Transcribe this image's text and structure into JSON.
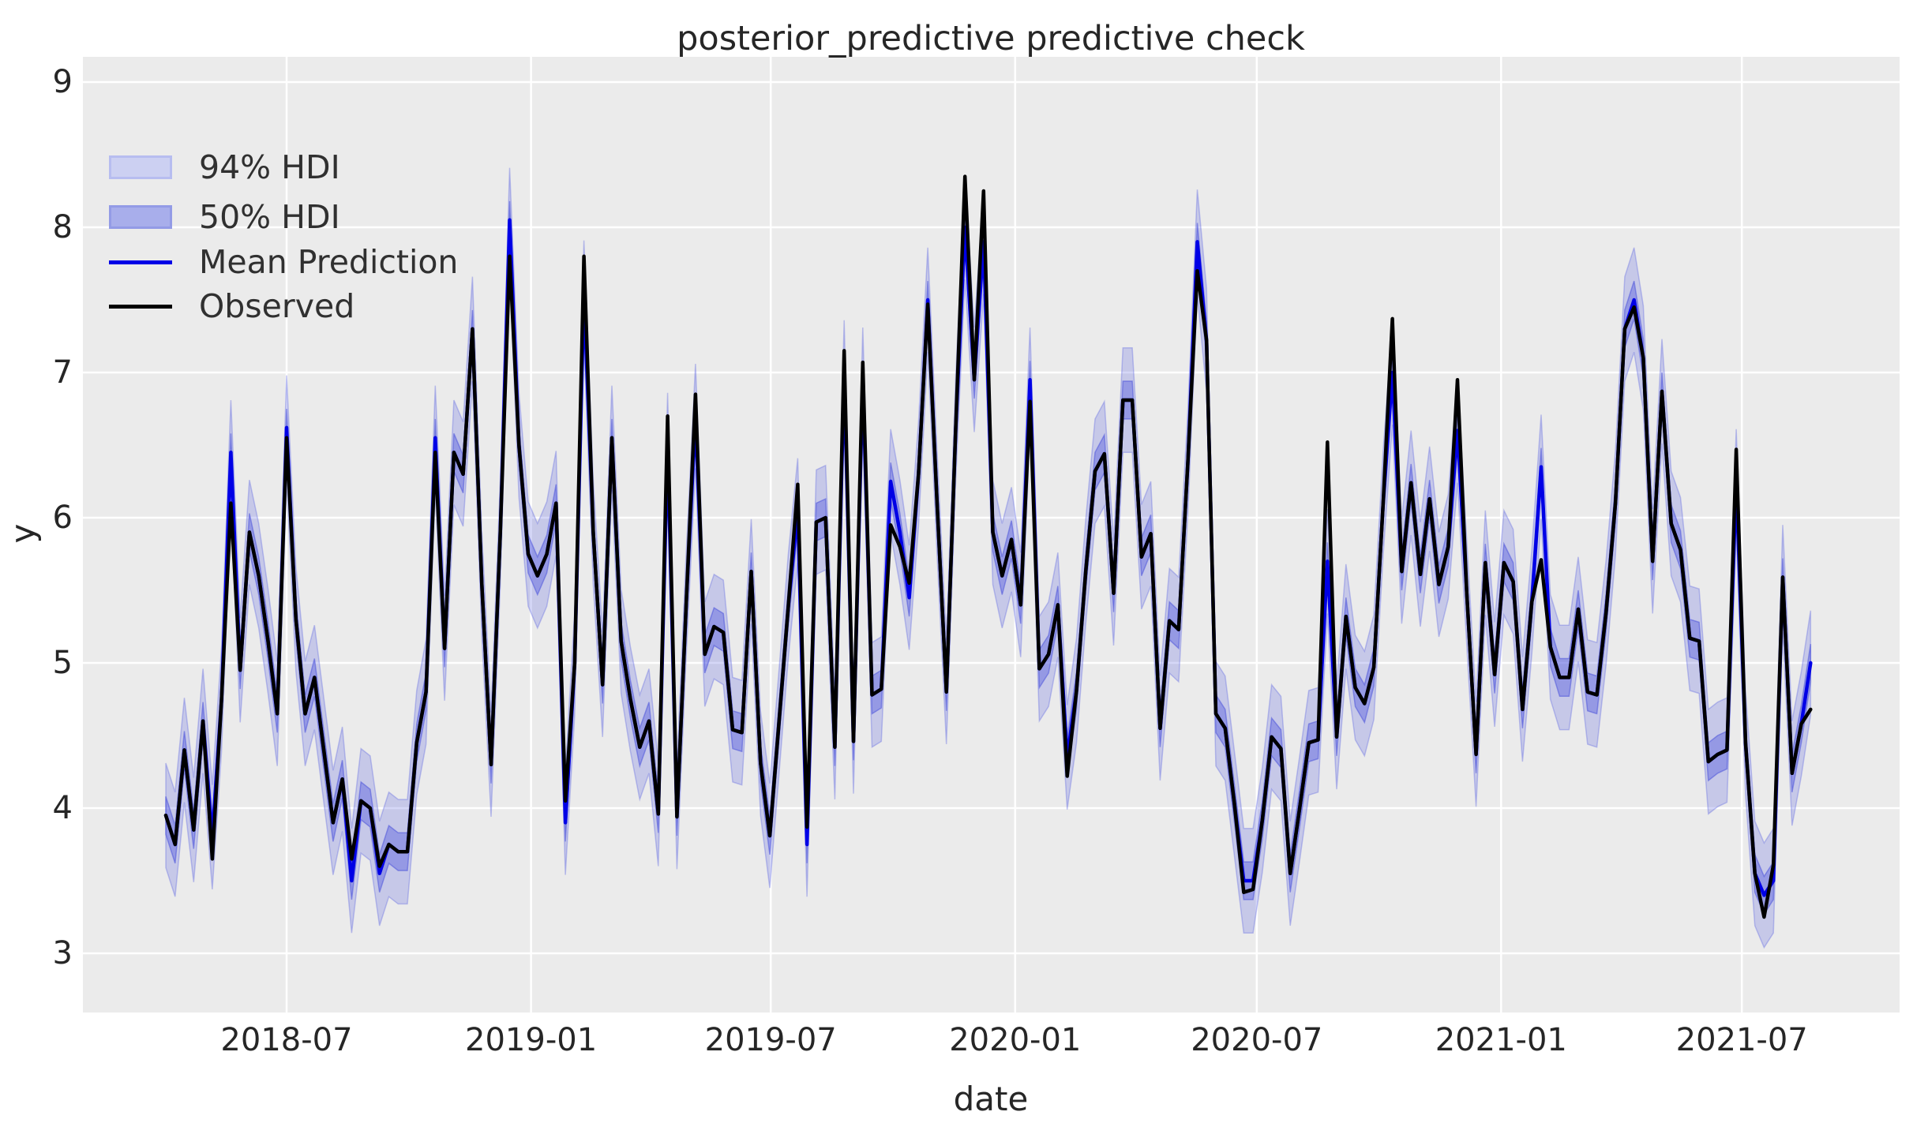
{
  "title": "posterior_predictive predictive check",
  "axes": {
    "xlabel": "date",
    "ylabel": "y"
  },
  "legend": {
    "hdi94_label": "94% HDI",
    "hdi50_label": "50% HDI",
    "mean_label": "Mean Prediction",
    "observed_label": "Observed"
  },
  "colors": {
    "figure_background": "#ffffff",
    "plot_background": "#ebebeb",
    "gridline": "#ffffff",
    "text": "#262626",
    "observed_line": "#000000",
    "mean_line": "#0000e6",
    "hdi94_fill": "rgba(88,96,225,0.25)",
    "hdi94_edge": "rgba(88,96,225,0.35)",
    "hdi50_fill": "rgba(88,96,225,0.45)",
    "hdi50_edge": "rgba(78,86,218,0.55)",
    "legend_hdi94_fill": "#ccd0f2",
    "legend_hdi94_edge": "#b7bdf0",
    "legend_hdi50_fill": "#a8aeeb",
    "legend_hdi50_edge": "#939be6"
  },
  "chart_data": {
    "type": "line",
    "title": "posterior_predictive predictive check",
    "xlabel": "date",
    "ylabel": "y",
    "x_unit": "weeks starting 2018-04-01",
    "xticks": [
      {
        "label": "2018-07",
        "week": 13.0
      },
      {
        "label": "2019-01",
        "week": 39.3
      },
      {
        "label": "2019-07",
        "week": 65.1
      },
      {
        "label": "2020-01",
        "week": 91.4
      },
      {
        "label": "2020-07",
        "week": 117.4
      },
      {
        "label": "2021-01",
        "week": 143.7
      },
      {
        "label": "2021-07",
        "week": 169.6
      }
    ],
    "yticks": [
      3,
      4,
      5,
      6,
      7,
      8,
      9
    ],
    "ylim": [
      2.7,
      9.17
    ],
    "xlim_weeks": [
      -8.9,
      186.6
    ],
    "grid": true,
    "legend_position": "upper left",
    "bands": [
      {
        "name": "94% HDI",
        "halfwidth": 0.36
      },
      {
        "name": "50% HDI",
        "halfwidth": 0.13
      }
    ],
    "series": [
      {
        "name": "Observed",
        "values": [
          3.95,
          3.75,
          4.4,
          3.85,
          4.6,
          3.65,
          4.75,
          6.1,
          4.95,
          5.9,
          5.6,
          5.15,
          4.65,
          6.55,
          5.3,
          4.65,
          4.9,
          4.4,
          3.9,
          4.2,
          3.65,
          4.05,
          4.0,
          3.6,
          3.75,
          3.7,
          3.7,
          4.45,
          4.8,
          6.45,
          5.1,
          6.45,
          6.3,
          7.3,
          5.55,
          4.3,
          5.9,
          7.8,
          6.5,
          5.75,
          5.6,
          5.75,
          6.1,
          4.05,
          5.0,
          7.8,
          5.9,
          4.85,
          6.55,
          5.15,
          4.75,
          4.42,
          4.6,
          3.96,
          6.7,
          3.94,
          5.4,
          6.85,
          5.06,
          5.25,
          5.21,
          4.54,
          4.52,
          5.63,
          4.31,
          3.81,
          4.6,
          5.4,
          6.23,
          3.87,
          5.97,
          6.0,
          4.42,
          7.15,
          4.46,
          7.07,
          4.78,
          4.82,
          5.95,
          5.8,
          5.55,
          6.3,
          7.47,
          6.1,
          4.8,
          6.6,
          8.35,
          6.95,
          8.25,
          5.9,
          5.6,
          5.85,
          5.4,
          6.8,
          4.96,
          5.06,
          5.4,
          4.22,
          4.81,
          5.63,
          6.32,
          6.44,
          5.48,
          6.81,
          6.81,
          5.73,
          5.89,
          4.55,
          5.29,
          5.23,
          6.4,
          7.7,
          7.22,
          4.65,
          4.55,
          4.03,
          3.42,
          3.44,
          3.92,
          4.49,
          4.41,
          3.55,
          3.99,
          4.45,
          4.47,
          6.52,
          4.49,
          5.32,
          4.83,
          4.72,
          4.97,
          6.1,
          7.37,
          5.63,
          6.24,
          5.61,
          6.13,
          5.54,
          5.8,
          6.95,
          5.48,
          4.37,
          5.69,
          4.92,
          5.69,
          5.56,
          4.68,
          5.42,
          5.71,
          5.11,
          4.9,
          4.9,
          5.37,
          4.8,
          4.78,
          5.35,
          6.1,
          7.3,
          7.45,
          7.1,
          5.7,
          6.87,
          5.96,
          5.78,
          5.17,
          5.15,
          4.32,
          4.37,
          4.4,
          6.47,
          4.45,
          3.55,
          3.25,
          3.61,
          5.59,
          4.24,
          4.58,
          4.68
        ]
      },
      {
        "name": "Mean Prediction",
        "values": [
          3.95,
          3.75,
          4.4,
          3.85,
          4.6,
          3.8,
          4.75,
          6.45,
          4.95,
          5.9,
          5.6,
          5.15,
          4.65,
          6.62,
          5.3,
          4.65,
          4.9,
          4.4,
          3.9,
          4.2,
          3.5,
          4.05,
          4.0,
          3.55,
          3.75,
          3.7,
          3.7,
          4.45,
          4.8,
          6.55,
          5.1,
          6.45,
          6.3,
          7.3,
          5.55,
          4.3,
          5.9,
          8.05,
          6.5,
          5.75,
          5.6,
          5.75,
          6.1,
          3.9,
          5.0,
          7.55,
          5.9,
          4.85,
          6.55,
          5.15,
          4.75,
          4.42,
          4.6,
          3.96,
          6.5,
          3.94,
          5.4,
          6.7,
          5.06,
          5.25,
          5.21,
          4.54,
          4.52,
          5.63,
          4.31,
          3.81,
          4.6,
          5.4,
          6.05,
          3.75,
          5.97,
          6.0,
          4.42,
          7.0,
          4.46,
          6.95,
          4.78,
          4.82,
          6.25,
          5.9,
          5.45,
          6.3,
          7.5,
          6.1,
          4.8,
          6.6,
          8.0,
          6.95,
          7.9,
          5.9,
          5.6,
          5.85,
          5.4,
          6.95,
          4.96,
          5.06,
          5.4,
          4.35,
          4.81,
          5.63,
          6.32,
          6.44,
          5.48,
          6.81,
          6.81,
          5.73,
          5.89,
          4.55,
          5.29,
          5.23,
          6.4,
          7.9,
          7.22,
          4.65,
          4.55,
          4.03,
          3.5,
          3.5,
          3.92,
          4.49,
          4.41,
          3.55,
          3.99,
          4.45,
          4.47,
          5.7,
          4.49,
          5.32,
          4.83,
          4.72,
          4.97,
          6.1,
          7.0,
          5.63,
          6.24,
          5.61,
          6.13,
          5.54,
          5.8,
          6.6,
          5.48,
          4.37,
          5.69,
          4.92,
          5.69,
          5.56,
          4.68,
          5.42,
          6.35,
          5.11,
          4.9,
          4.9,
          5.37,
          4.8,
          4.78,
          5.35,
          6.1,
          7.3,
          7.5,
          7.1,
          5.7,
          6.87,
          5.96,
          5.78,
          5.17,
          5.15,
          4.32,
          4.37,
          4.4,
          6.25,
          4.45,
          3.55,
          3.4,
          3.5,
          5.59,
          4.24,
          4.58,
          5.0
        ]
      }
    ]
  }
}
